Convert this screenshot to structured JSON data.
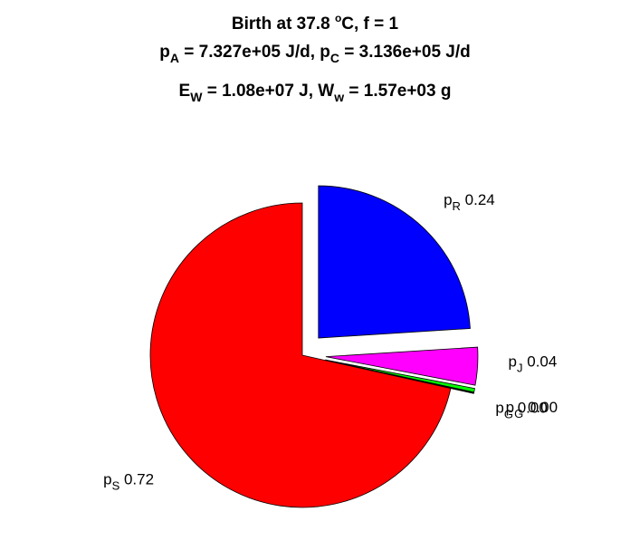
{
  "chart_data": {
    "type": "pie",
    "title": {
      "line1": {
        "pre": "Birth at 37.8 ",
        "sup": "o",
        "post": "C, f = 1"
      },
      "line2": {
        "a_main": "p",
        "a_sub": "A",
        "a_val": " = 7.327e+05 J/d, ",
        "c_main": "p",
        "c_sub": "C",
        "c_val": " = 3.136e+05 J/d"
      },
      "line3": {
        "e_main": "E",
        "e_sub": "W",
        "e_val": " = 1.08e+07 J, ",
        "w_main": "W",
        "w_sub": "w",
        "w_val": " = 1.57e+03 g"
      }
    },
    "slices": [
      {
        "label": "p",
        "sub": "R",
        "value_text": "0.24",
        "value": 0.24,
        "color": "#0000ff"
      },
      {
        "label": "p",
        "sub": "J",
        "value_text": "0.04",
        "value": 0.04,
        "color": "#ff00ff"
      },
      {
        "label": "p",
        "sub": "G",
        "value_text": "0.00",
        "value": 0.004,
        "color": "#00ff00"
      },
      {
        "label": "p",
        "sub": "G",
        "value_text": "0.00",
        "value": 0.001,
        "color": "#000000"
      },
      {
        "label": "p",
        "sub": "S",
        "value_text": "0.72",
        "value": 0.715,
        "color": "#ff0000"
      }
    ]
  }
}
